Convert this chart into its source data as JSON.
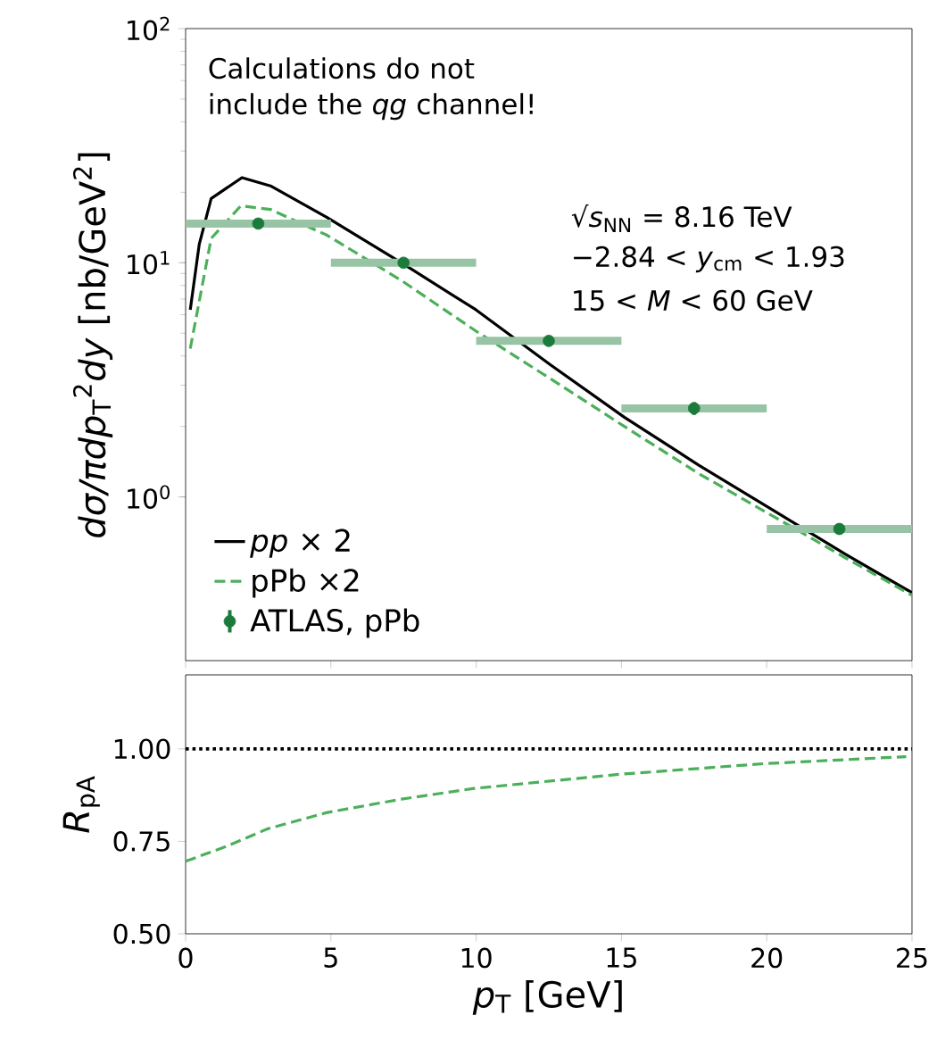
{
  "chart_data": [
    {
      "type": "line",
      "ylabel": "*dσ/πdp*$_{T}$$^{2}$*dy* [nb/GeV$^{2}$]",
      "log": "y",
      "xlim": [
        0,
        25
      ],
      "xticks": [
        0,
        5,
        10,
        15,
        20,
        25
      ],
      "ylim": [
        0.2,
        100
      ],
      "yticks": [
        {
          "value": 1,
          "label": "10$^{0}$"
        },
        {
          "value": 10,
          "label": "10$^{1}$"
        },
        {
          "value": 100,
          "label": "10$^{2}$"
        }
      ],
      "tick_labels": "y",
      "legend": "bottom left",
      "grid": false,
      "annotations": [
        "Calculations do not include the *qg* channel!",
        "√*s*$_{NN}$ = 8.16 TeV",
        "−2.84 < *y*$_{cm}$ < 1.93",
        "15 < *M* < 60 GeV"
      ],
      "series": [
        {
          "name": "*pp* × 2",
          "color": "#000000",
          "line_style": "solid",
          "x": [
            0.16,
            0.47,
            0.88,
            1.94,
            2.92,
            4.87,
            7.43,
            9.99,
            12.55,
            15.1,
            17.65,
            20.2,
            22.7,
            25
          ],
          "values": [
            6.3,
            12,
            18.8,
            23.1,
            21.3,
            15.6,
            10.0,
            6.3,
            3.67,
            2.19,
            1.37,
            0.88,
            0.57,
            0.39
          ]
        },
        {
          "name": "pPb ×2",
          "color": "#4caf5a",
          "line_style": "dashed",
          "x": [
            0.16,
            0.88,
            1.9,
            2.92,
            4.87,
            7.43,
            10,
            12.55,
            15.1,
            17.65,
            20.2,
            22.7,
            25
          ],
          "values": [
            4.3,
            12.7,
            17.5,
            16.9,
            13.1,
            8.4,
            5.1,
            3.2,
            2.0,
            1.26,
            0.83,
            0.55,
            0.38
          ]
        },
        {
          "name": "ATLAS, pPb",
          "type": "scatter",
          "color": "#1b7b3a",
          "marker": "circle",
          "x": [
            2.5,
            7.5,
            12.5,
            17.5,
            22.5
          ],
          "values": [
            14.7,
            10.0,
            4.64,
            2.39,
            0.73
          ],
          "errors": [
            0.5,
            0.4,
            0.25,
            0.15,
            null
          ],
          "xerrors": [
            2.5,
            2.5,
            2.5,
            2.5,
            2.5
          ]
        }
      ]
    },
    {
      "type": "line",
      "xlabel": "*p*$_{T}$ [GeV]",
      "ylabel": "*R*$_{pA}$",
      "xlim": [
        0,
        25
      ],
      "xticks": [
        0,
        5,
        10,
        15,
        20,
        25
      ],
      "ylim": [
        0.5,
        1.2
      ],
      "yticks": [
        {
          "value": 0.5,
          "label": "0.50"
        },
        {
          "value": 0.75,
          "label": "0.75"
        },
        {
          "value": 1.0,
          "label": "1.00"
        }
      ],
      "grid": false,
      "legend": false,
      "ref_lines": [
        {
          "axis": "y",
          "value": 1.0,
          "color": "#000000",
          "line_style": "dotted"
        }
      ],
      "series": [
        {
          "color": "#4caf5a",
          "line_style": "dashed",
          "x": [
            0,
            1.39,
            2.83,
            4.87,
            7.43,
            9.93,
            14.9,
            19.9,
            24.8
          ],
          "values": [
            0.696,
            0.736,
            0.784,
            0.828,
            0.864,
            0.893,
            0.931,
            0.96,
            0.979
          ]
        }
      ]
    }
  ]
}
